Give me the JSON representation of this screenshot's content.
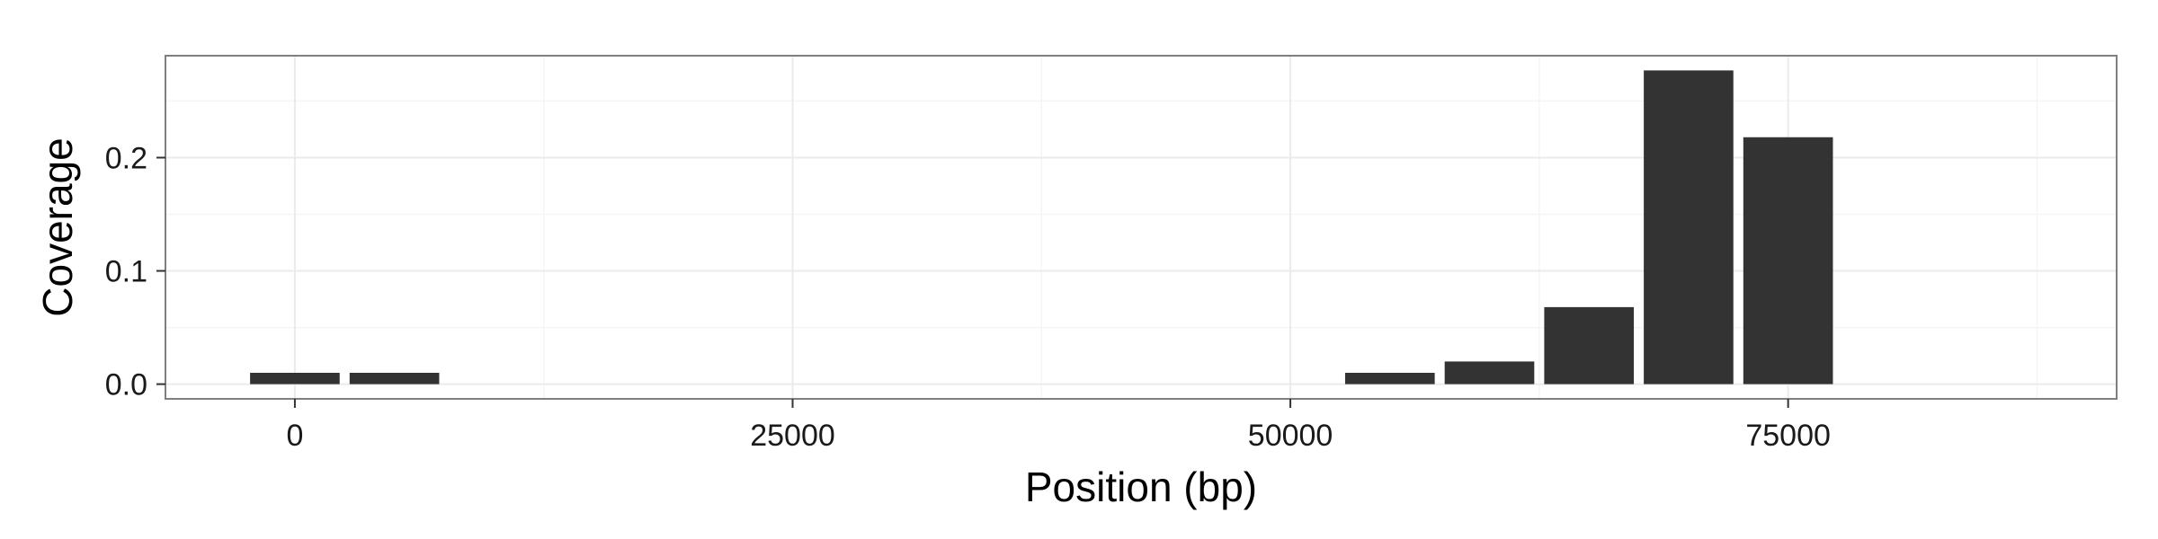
{
  "chart_data": {
    "type": "bar",
    "xlabel": "Position (bp)",
    "ylabel": "Coverage",
    "xlim": [
      -6500,
      91500
    ],
    "ylim": [
      -0.013,
      0.29
    ],
    "x_ticks": [
      0,
      25000,
      50000,
      75000
    ],
    "x_tick_labels": [
      "0",
      "25000",
      "50000",
      "75000"
    ],
    "y_ticks": [
      0.0,
      0.1,
      0.2
    ],
    "y_tick_labels": [
      "0.0",
      "0.1",
      "0.2"
    ],
    "bin_width": 5000,
    "bars": [
      {
        "x": 0,
        "value": 0.01
      },
      {
        "x": 5000,
        "value": 0.01
      },
      {
        "x": 55000,
        "value": 0.01
      },
      {
        "x": 60000,
        "value": 0.02
      },
      {
        "x": 65000,
        "value": 0.068
      },
      {
        "x": 70000,
        "value": 0.277
      },
      {
        "x": 75000,
        "value": 0.218
      }
    ],
    "grid": true,
    "colors": {
      "bar": "#333333",
      "panel_border": "#7f7f7f",
      "grid_major": "#ebebeb",
      "grid_minor": "#f5f5f5"
    }
  }
}
